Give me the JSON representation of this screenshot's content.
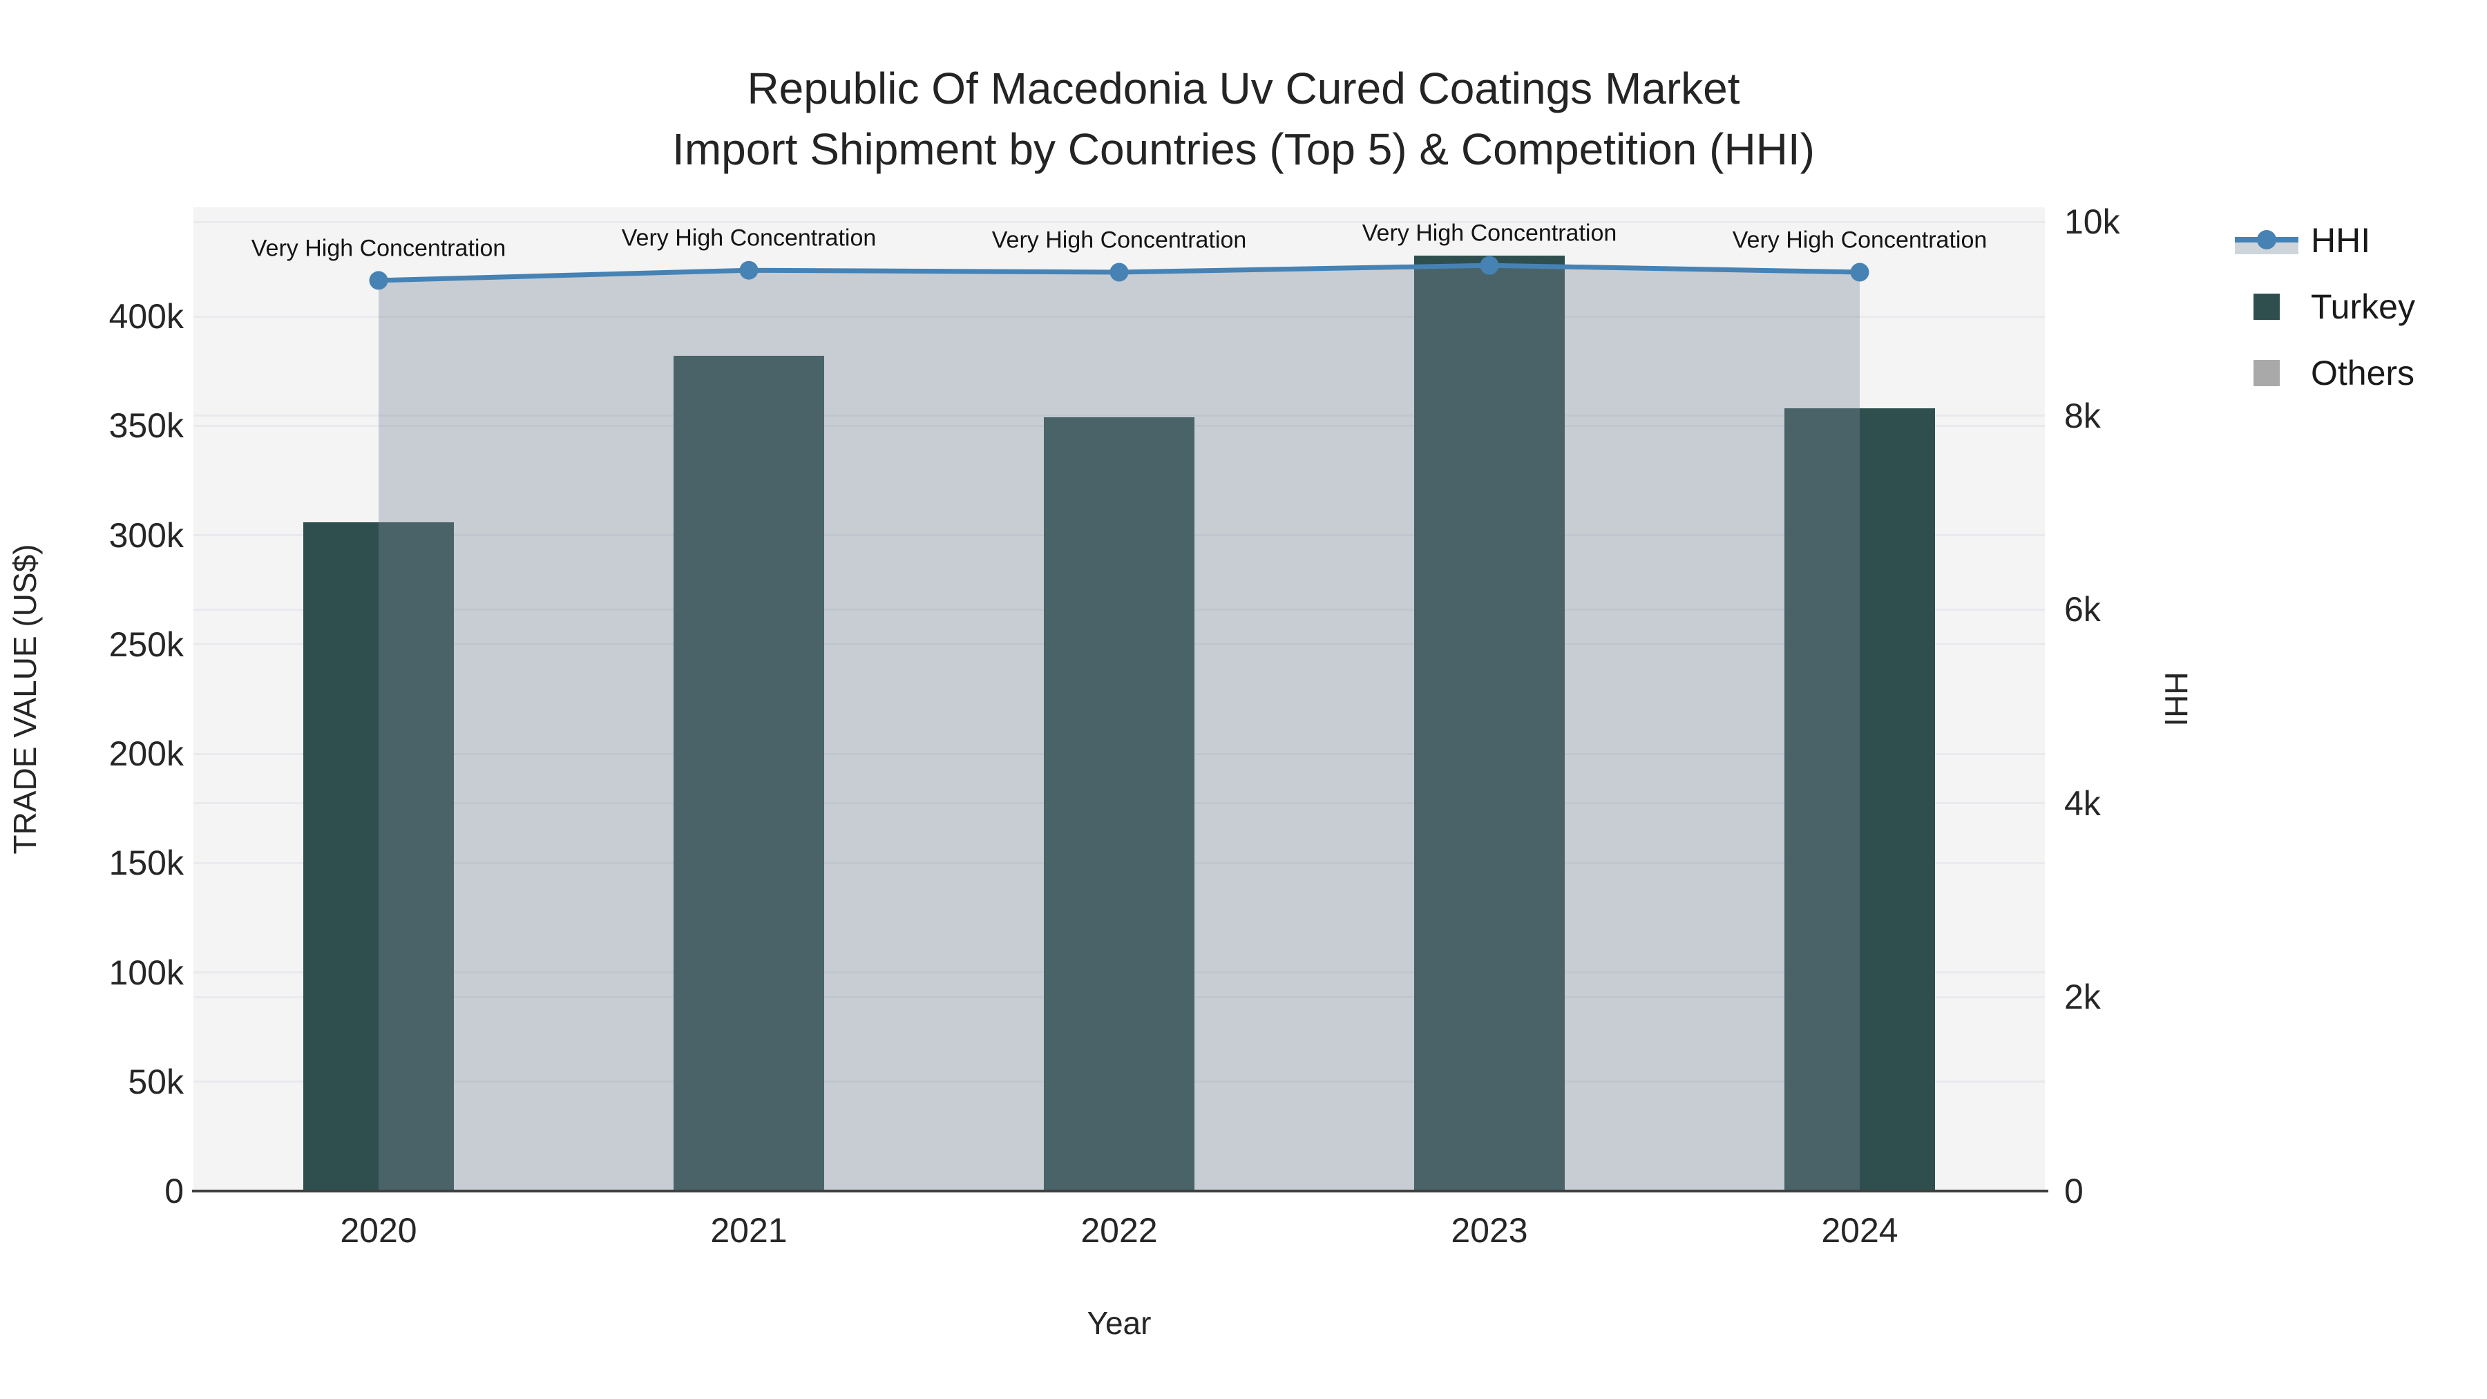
{
  "title": {
    "line1": "Republic Of Macedonia Uv Cured Coatings Market",
    "line2": "Import Shipment by Countries (Top 5) & Competition (HHI)"
  },
  "legend": {
    "items": [
      {
        "label": "HHI",
        "type": "line",
        "color": "#4682B4"
      },
      {
        "label": "Turkey",
        "type": "square",
        "color": "#2F4F4F"
      },
      {
        "label": "Others",
        "type": "square",
        "color": "#A9A9A9"
      }
    ]
  },
  "axes": {
    "x": {
      "title": "Year",
      "categories": [
        "2020",
        "2021",
        "2022",
        "2023",
        "2024"
      ]
    },
    "y_left": {
      "title": "TRADE VALUE (US$)",
      "tick_labels": [
        "0",
        "50k",
        "100k",
        "150k",
        "200k",
        "250k",
        "300k",
        "350k",
        "400k"
      ],
      "tick_values": [
        0,
        50000,
        100000,
        150000,
        200000,
        250000,
        300000,
        350000,
        400000
      ],
      "range": [
        0,
        450000
      ]
    },
    "y_right": {
      "title": "HHI",
      "tick_labels": [
        "0",
        "2k",
        "4k",
        "6k",
        "8k",
        "10k"
      ],
      "tick_values": [
        0,
        2000,
        4000,
        6000,
        8000,
        10000
      ],
      "range": [
        0,
        10150
      ]
    }
  },
  "colors": {
    "plot_background": "#f4f4f5",
    "gridline": "#e9eaed",
    "axis_line": "#3f3f3f",
    "turkey_bar": "#2F4F4F",
    "others_bar": "#A9A9A9",
    "hhi_line": "#4682B4",
    "hhi_fill": "rgba(119,136,153,0.36)"
  },
  "chart_data": {
    "type": "bar+line",
    "title": "Republic Of Macedonia Uv Cured Coatings Market Import Shipment by Countries (Top 5) & Competition (HHI)",
    "categories": [
      "2020",
      "2021",
      "2022",
      "2023",
      "2024"
    ],
    "xlabel": "Year",
    "ylabel_left": "TRADE VALUE (US$)",
    "ylabel_right": "HHI",
    "ylim_left": [
      0,
      450000
    ],
    "ylim_right": [
      0,
      10150
    ],
    "grid": true,
    "legend_position": "top-right-outside",
    "series": [
      {
        "name": "Turkey",
        "type": "bar",
        "axis": "left",
        "color": "#2F4F4F",
        "values": [
          306000,
          382000,
          354000,
          428000,
          358000
        ]
      },
      {
        "name": "Others",
        "type": "bar",
        "axis": "left",
        "color": "#A9A9A9",
        "values": [
          0,
          0,
          0,
          0,
          0
        ],
        "note": "bars not visible at chart scale"
      },
      {
        "name": "HHI",
        "type": "line",
        "axis": "right",
        "color": "#4682B4",
        "fill": "rgba(119,136,153,0.36)",
        "marker": "circle",
        "values": [
          9395,
          9500,
          9480,
          9550,
          9480
        ]
      }
    ],
    "annotations": [
      {
        "text": "Very High Concentration",
        "x": "2020"
      },
      {
        "text": "Very High Concentration",
        "x": "2021"
      },
      {
        "text": "Very High Concentration",
        "x": "2022"
      },
      {
        "text": "Very High Concentration",
        "x": "2023"
      },
      {
        "text": "Very High Concentration",
        "x": "2024"
      }
    ]
  }
}
